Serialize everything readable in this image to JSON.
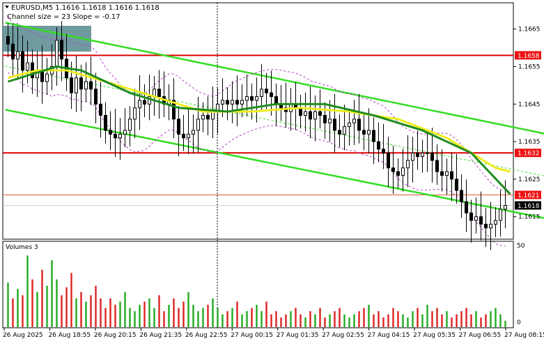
{
  "header": {
    "symbol_line": "EURUSD,M5  1.1616 1.1618 1.1616 1.1618",
    "indicator_line": "Channel size = 23 Slope = -0.17"
  },
  "volume_panel": {
    "title": "Volumes 3",
    "scale_top": "50",
    "scale_bottom": "0"
  },
  "colors": {
    "background": "#ffffff",
    "candle": "#000000",
    "ma_green": "#1e8c1e",
    "ma_yellow": "#ecec20",
    "channel_green": "#33dd22",
    "horizontal_line": "#dd0000",
    "volume_up": "#22aa22",
    "volume_down": "#dd2222",
    "price_tag_red": "#ee1111",
    "price_tag_dark": "#000000",
    "highlight_box": "#5f8f95"
  },
  "chart_data": {
    "type": "candlestick",
    "symbol": "EURUSD",
    "timeframe": "M5",
    "y_axis": {
      "ticks": [
        "1.1665",
        "1.1655",
        "1.1645",
        "1.1635",
        "1.1625",
        "1.1615"
      ],
      "range": [
        1.1609,
        1.1672
      ]
    },
    "x_axis": {
      "ticks": [
        "26 Aug 2025",
        "26 Aug 18:55",
        "26 Aug 20:15",
        "26 Aug 21:35",
        "26 Aug 22:55",
        "27 Aug 00:15",
        "27 Aug 01:35",
        "27 Aug 02:55",
        "27 Aug 04:15",
        "27 Aug 05:35",
        "27 Aug 06:55",
        "27 Aug 08:15"
      ]
    },
    "horizontal_levels": [
      {
        "label": "1.1658",
        "value": 1.1658,
        "style": "thick-red",
        "tag": "red"
      },
      {
        "label": "1.1632",
        "value": 1.1632,
        "style": "thick-red",
        "tag": "red"
      },
      {
        "label": "1.1621",
        "value": 1.16208,
        "style": "thin-red",
        "tag": "red"
      },
      {
        "label": "1.1618",
        "value": 1.1618,
        "style": "thin-grey",
        "tag": "dark"
      }
    ],
    "channel": {
      "upper": [
        [
          0,
          1.16667
        ],
        [
          130,
          1.16318
        ]
      ],
      "lower": [
        [
          0,
          1.16435
        ],
        [
          130,
          1.16094
        ]
      ],
      "mid": [
        [
          0,
          1.16551
        ],
        [
          130,
          1.16206
        ]
      ]
    },
    "closes": [
      1.1661,
      1.1657,
      1.1659,
      1.1654,
      1.1656,
      1.1652,
      1.1654,
      1.1651,
      1.1653,
      1.1655,
      1.1662,
      1.1657,
      1.1652,
      1.1648,
      1.1652,
      1.1649,
      1.1651,
      1.1649,
      1.1645,
      1.1642,
      1.1638,
      1.1637,
      1.1636,
      1.1637,
      1.1638,
      1.1641,
      1.1644,
      1.1646,
      1.1645,
      1.1647,
      1.1649,
      1.1647,
      1.1645,
      1.1646,
      1.1641,
      1.1637,
      1.1636,
      1.1637,
      1.1638,
      1.1641,
      1.1642,
      1.1641,
      1.1643,
      1.1645,
      1.1646,
      1.1645,
      1.1646,
      1.1645,
      1.1646,
      1.1647,
      1.1646,
      1.1647,
      1.1649,
      1.1648,
      1.1647,
      1.1645,
      1.1644,
      1.1643,
      1.1645,
      1.1644,
      1.1642,
      1.1643,
      1.1641,
      1.1643,
      1.1642,
      1.164,
      1.1641,
      1.1638,
      1.1637,
      1.1639,
      1.164,
      1.1641,
      1.1638,
      1.1637,
      1.1638,
      1.1635,
      1.1633,
      1.1632,
      1.1628,
      1.1627,
      1.1626,
      1.1628,
      1.163,
      1.1632,
      1.1631,
      1.1632,
      1.1632,
      1.163,
      1.1627,
      1.1626,
      1.1627,
      1.1625,
      1.1622,
      1.1619,
      1.1616,
      1.1614,
      1.1615,
      1.1613,
      1.1612,
      1.1613,
      1.1614,
      1.1617,
      1.1618
    ],
    "ma_slow": [
      [
        0,
        1.1651
      ],
      [
        10,
        1.1655
      ],
      [
        15,
        1.1654
      ],
      [
        25,
        1.1648
      ],
      [
        35,
        1.1644
      ],
      [
        45,
        1.1643
      ],
      [
        55,
        1.1645
      ],
      [
        65,
        1.1645
      ],
      [
        75,
        1.1642
      ],
      [
        85,
        1.1638
      ],
      [
        95,
        1.1632
      ],
      [
        103,
        1.1621
      ]
    ],
    "ma_fast": [
      [
        0,
        1.1652
      ],
      [
        6,
        1.1654
      ],
      [
        12,
        1.1654
      ],
      [
        20,
        1.1651
      ],
      [
        30,
        1.1647
      ],
      [
        40,
        1.1643
      ],
      [
        50,
        1.1643
      ],
      [
        60,
        1.1644
      ],
      [
        70,
        1.1643
      ],
      [
        80,
        1.1641
      ],
      [
        90,
        1.1636
      ],
      [
        100,
        1.1628
      ],
      [
        103,
        1.1627
      ]
    ],
    "volumes": [
      28,
      18,
      24,
      20,
      45,
      30,
      22,
      36,
      26,
      42,
      30,
      20,
      25,
      34,
      18,
      22,
      16,
      20,
      26,
      18,
      12,
      18,
      14,
      16,
      22,
      12,
      10,
      14,
      16,
      18,
      12,
      20,
      10,
      14,
      18,
      12,
      16,
      22,
      14,
      10,
      12,
      14,
      18,
      12,
      8,
      10,
      12,
      16,
      8,
      10,
      12,
      14,
      10,
      16,
      8,
      10,
      6,
      8,
      10,
      12,
      8,
      6,
      10,
      8,
      12,
      6,
      8,
      10,
      12,
      8,
      6,
      8,
      10,
      12,
      14,
      8,
      10,
      6,
      8,
      12,
      10,
      8,
      6,
      10,
      12,
      8,
      14,
      10,
      12,
      8,
      10,
      6,
      8,
      10,
      12,
      8,
      10,
      6,
      8,
      10,
      12,
      8,
      4
    ]
  }
}
